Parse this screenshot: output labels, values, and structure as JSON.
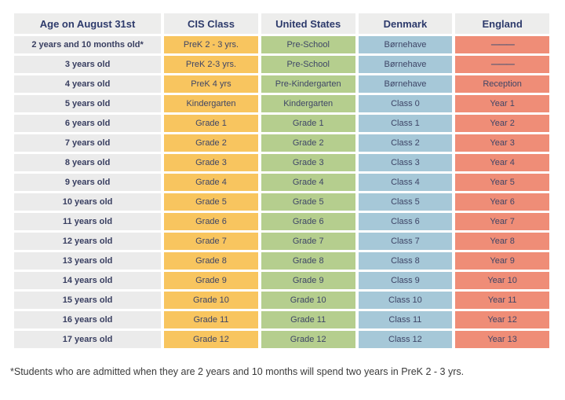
{
  "table": {
    "columns": [
      {
        "key": "age",
        "label": "Age on August 31st",
        "color": "#ebebeb"
      },
      {
        "key": "cis",
        "label": "CIS Class",
        "color": "#f8c55f"
      },
      {
        "key": "us",
        "label": "United States",
        "color": "#b5ce8e"
      },
      {
        "key": "denmark",
        "label": "Denmark",
        "color": "#a6c8d8"
      },
      {
        "key": "england",
        "label": "England",
        "color": "#ef8d77"
      }
    ],
    "rows": [
      [
        "2 years and 10 months old*",
        "PreK 2 - 3 yrs.",
        "Pre-School",
        "Børnehave",
        "———"
      ],
      [
        "3 years old",
        "PreK 2-3 yrs.",
        "Pre-School",
        "Børnehave",
        "———"
      ],
      [
        "4 years old",
        "PreK 4 yrs",
        "Pre-Kindergarten",
        "Børnehave",
        "Reception"
      ],
      [
        "5 years old",
        "Kindergarten",
        "Kindergarten",
        "Class 0",
        "Year 1"
      ],
      [
        "6 years old",
        "Grade 1",
        "Grade 1",
        "Class 1",
        "Year 2"
      ],
      [
        "7 years old",
        "Grade 2",
        "Grade 2",
        "Class 2",
        "Year 3"
      ],
      [
        "8 years old",
        "Grade 3",
        "Grade 3",
        "Class 3",
        "Year 4"
      ],
      [
        "9 years old",
        "Grade 4",
        "Grade 4",
        "Class 4",
        "Year 5"
      ],
      [
        "10 years old",
        "Grade 5",
        "Grade 5",
        "Class 5",
        "Year 6"
      ],
      [
        "11 years old",
        "Grade 6",
        "Grade 6",
        "Class 6",
        "Year 7"
      ],
      [
        "12 years old",
        "Grade 7",
        "Grade 7",
        "Class 7",
        "Year 8"
      ],
      [
        "13 years old",
        "Grade 8",
        "Grade 8",
        "Class 8",
        "Year 9"
      ],
      [
        "14 years old",
        "Grade 9",
        "Grade 9",
        "Class 9",
        "Year 10"
      ],
      [
        "15 years old",
        "Grade 10",
        "Grade 10",
        "Class 10",
        "Year 11"
      ],
      [
        "16 years old",
        "Grade 11",
        "Grade 11",
        "Class 11",
        "Year 12"
      ],
      [
        "17 years old",
        "Grade 12",
        "Grade 12",
        "Class 12",
        "Year 13"
      ]
    ],
    "dash_placeholder": "———"
  },
  "footnote": "*Students who are admitted when they are 2 years and 10 months will spend two years in PreK 2 - 3 yrs.",
  "colors": {
    "header_text": "#2d3a6b",
    "header_bg": "#ededec",
    "age_cell_bg": "#ebebeb",
    "cis_cell_bg": "#f8c55f",
    "us_cell_bg": "#b5ce8e",
    "denmark_cell_bg": "#a6c8d8",
    "england_cell_bg": "#ef8d77",
    "cell_text": "#3e4566",
    "page_bg": "#ffffff"
  }
}
